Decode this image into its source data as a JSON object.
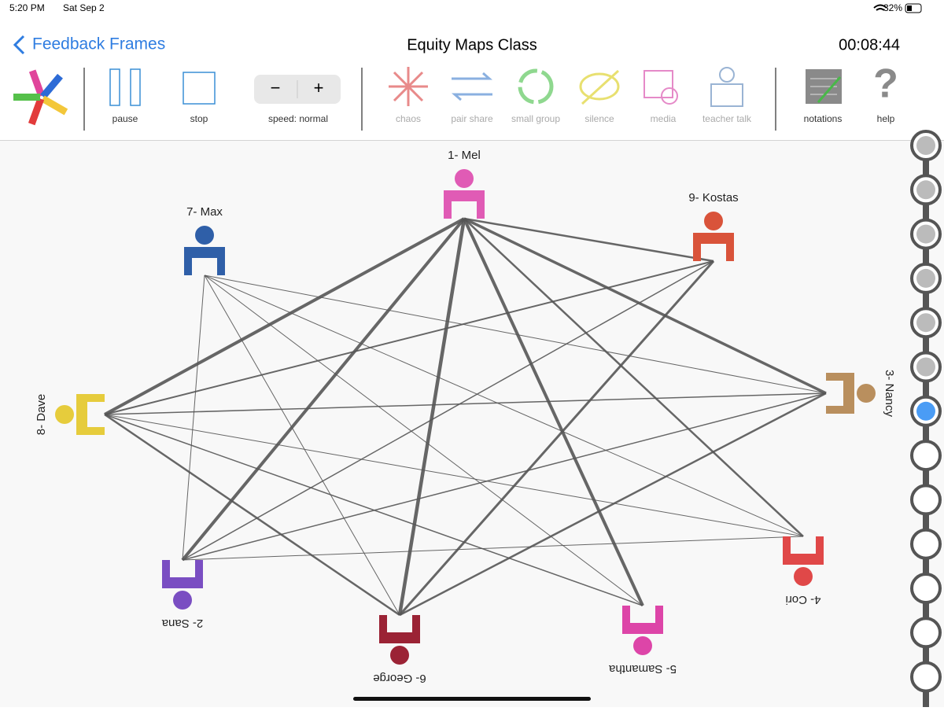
{
  "status_bar": {
    "time": "5:20 PM",
    "date": "Sat Sep 2",
    "battery": "32%"
  },
  "nav": {
    "back": "Feedback Frames",
    "title": "Equity Maps Class",
    "timer": "00:08:44"
  },
  "toolbar": {
    "pause": "pause",
    "stop": "stop",
    "speed": "speed: normal",
    "minus": "−",
    "plus": "+",
    "activities": [
      "chaos",
      "pair share",
      "small group",
      "silence",
      "media",
      "teacher talk"
    ],
    "notations": "notations",
    "help": "help",
    "help_glyph": "?"
  },
  "participants": [
    {
      "label": "1- Mel",
      "color": "#e05bb5"
    },
    {
      "label": "7- Max",
      "color": "#2f5fa8"
    },
    {
      "label": "9- Kostas",
      "color": "#d9533a"
    },
    {
      "label": "8- Dave",
      "color": "#e6cc3c"
    },
    {
      "label": "3- Nancy",
      "color": "#b98f5e"
    },
    {
      "label": "2- Sana",
      "color": "#7a4ec2"
    },
    {
      "label": "6- George",
      "color": "#9b2335"
    },
    {
      "label": "5- Samantha",
      "color": "#dd45a8"
    },
    {
      "label": "4- Cori",
      "color": "#e04848"
    }
  ]
}
